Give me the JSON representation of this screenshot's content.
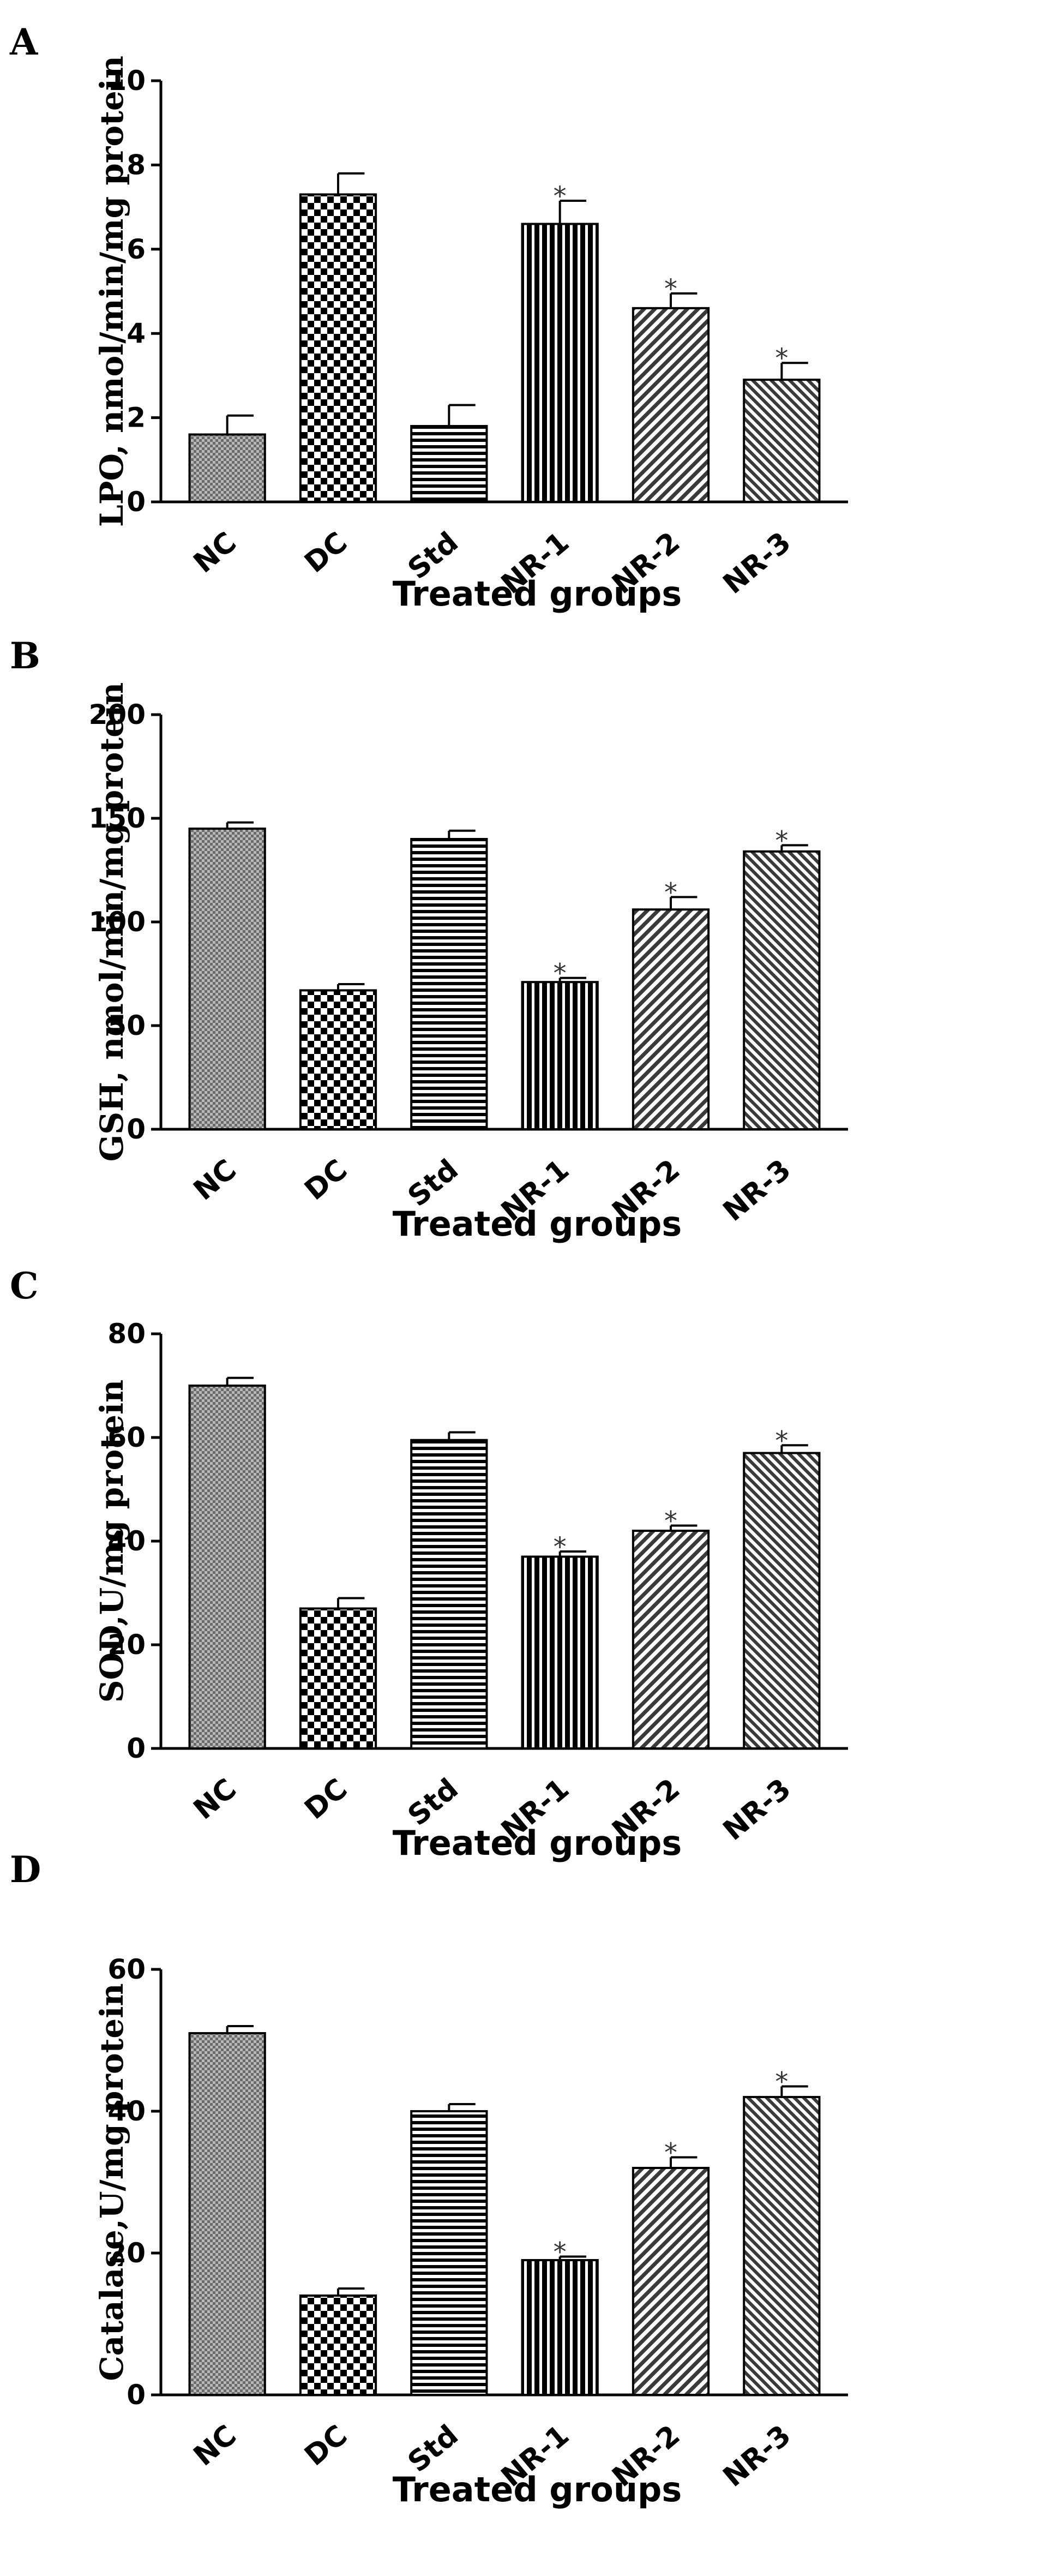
{
  "chart_data": [
    {
      "panel": "A",
      "type": "bar",
      "categories": [
        "NC",
        "DC",
        "Std",
        "NR-1",
        "NR-2",
        "NR-3"
      ],
      "values": [
        1.6,
        7.3,
        1.8,
        6.6,
        4.6,
        2.9
      ],
      "errors": [
        0.45,
        0.5,
        0.5,
        0.55,
        0.35,
        0.4
      ],
      "significant": [
        false,
        false,
        false,
        true,
        true,
        true
      ],
      "ylabel": "LPO, nmol/min/mg protein",
      "xlabel": "Treated groups",
      "ylim": [
        0,
        10
      ],
      "yticks": [
        "0",
        "2",
        "4",
        "6",
        "8",
        "10"
      ],
      "patterns": [
        "fine-check",
        "checker",
        "hstripe",
        "vstripe",
        "diag",
        "diag-dense"
      ]
    },
    {
      "panel": "B",
      "type": "bar",
      "categories": [
        "NC",
        "DC",
        "Std",
        "NR-1",
        "NR-2",
        "NR-3"
      ],
      "values": [
        145,
        67,
        140,
        71,
        106,
        134
      ],
      "errors": [
        3,
        3,
        4,
        2,
        6,
        3
      ],
      "significant": [
        false,
        false,
        false,
        true,
        true,
        true
      ],
      "ylabel": "GSH, nmol/min/mg protein",
      "xlabel": "Treated groups",
      "ylim": [
        0,
        200
      ],
      "yticks": [
        "0",
        "50",
        "100",
        "150",
        "200"
      ],
      "patterns": [
        "fine-check",
        "checker",
        "hstripe",
        "vstripe",
        "diag",
        "diag-dense"
      ]
    },
    {
      "panel": "C",
      "type": "bar",
      "categories": [
        "NC",
        "DC",
        "Std",
        "NR-1",
        "NR-2",
        "NR-3"
      ],
      "values": [
        70,
        27,
        59.5,
        37,
        42,
        57
      ],
      "errors": [
        1.5,
        2,
        1.5,
        1,
        1,
        1.5
      ],
      "significant": [
        false,
        false,
        false,
        true,
        true,
        true
      ],
      "ylabel": "SOD,U/mg protein",
      "xlabel": "Treated groups",
      "ylim": [
        0,
        80
      ],
      "yticks": [
        "0",
        "20",
        "40",
        "60",
        "80"
      ],
      "patterns": [
        "fine-check",
        "checker",
        "hstripe",
        "vstripe",
        "diag",
        "diag-dense"
      ]
    },
    {
      "panel": "D",
      "type": "bar",
      "categories": [
        "NC",
        "DC",
        "Std",
        "NR-1",
        "NR-2",
        "NR-3"
      ],
      "values": [
        51,
        14,
        40,
        19,
        32,
        42
      ],
      "errors": [
        1,
        1,
        1,
        0.5,
        1.5,
        1.5
      ],
      "significant": [
        false,
        false,
        false,
        true,
        true,
        true
      ],
      "ylabel": "Catalase,U/mg protein",
      "xlabel": "Treated groups",
      "ylim": [
        0,
        60
      ],
      "yticks": [
        "0",
        "20",
        "40",
        "60"
      ],
      "patterns": [
        "fine-check",
        "checker",
        "hstripe",
        "vstripe",
        "diag",
        "diag-dense"
      ]
    }
  ],
  "significance_marker": "*"
}
